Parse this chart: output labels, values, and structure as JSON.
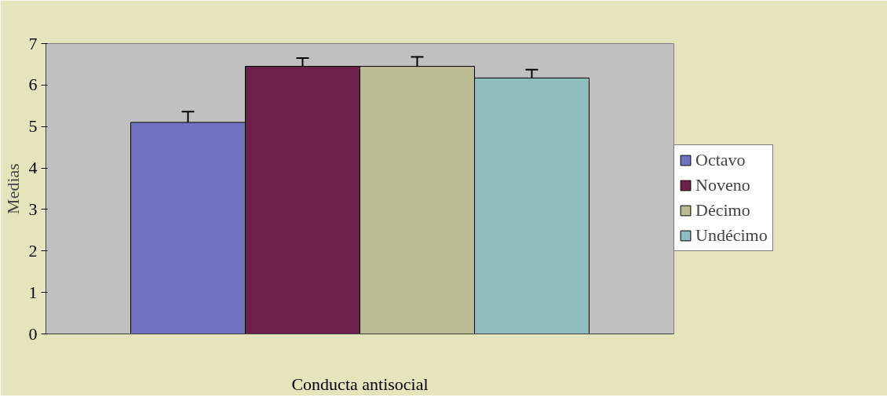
{
  "chart_data": {
    "type": "bar",
    "ylabel": "Medias",
    "categories": [
      "Conducta antisocial"
    ],
    "series": [
      {
        "name": "Octavo",
        "color": "#7273c0",
        "values": [
          5.1
        ],
        "errors": [
          0.26
        ]
      },
      {
        "name": "Noveno",
        "color": "#6d2048",
        "values": [
          6.45
        ],
        "errors": [
          0.2
        ]
      },
      {
        "name": "Décimo",
        "color": "#bcbc94",
        "values": [
          6.45
        ],
        "errors": [
          0.23
        ]
      },
      {
        "name": "Undécimo",
        "color": "#8fbcbc",
        "values": [
          6.17
        ],
        "errors": [
          0.2
        ]
      }
    ],
    "ylim": [
      0,
      7
    ],
    "yticks": [
      0,
      1,
      2,
      3,
      4,
      5,
      6,
      7
    ],
    "grid": false,
    "legend": "right"
  }
}
